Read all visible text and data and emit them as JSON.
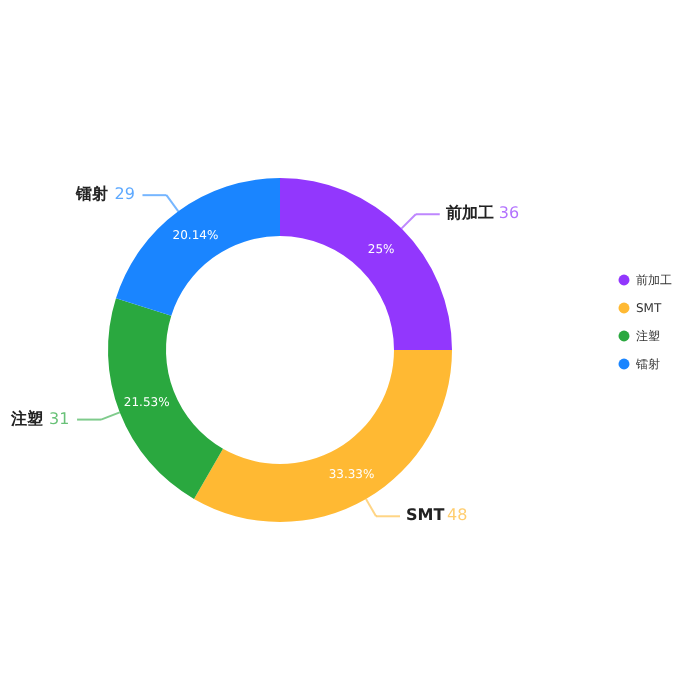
{
  "chart_data": {
    "type": "donut",
    "categories": [
      "前加工",
      "SMT",
      "注塑",
      "镭射"
    ],
    "values": [
      36,
      48,
      31,
      29
    ],
    "colors": [
      "#9237fd",
      "#ffb933",
      "#2aa83f",
      "#1a85ff"
    ],
    "data_labels": true,
    "annotations": [
      "25%",
      "33.33%",
      "21.53%",
      "20.14%"
    ],
    "legend": "right"
  }
}
